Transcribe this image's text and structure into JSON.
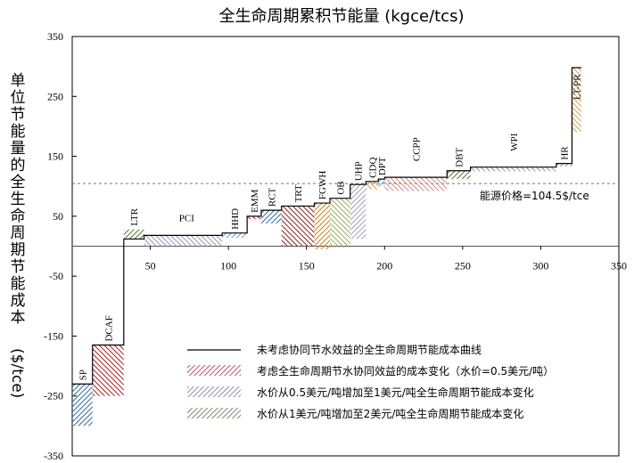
{
  "chart_data": {
    "type": "step-cost-curve",
    "title": "全生命周期累积节能量 (kgce/tcs)",
    "ylabel": "单位节能量的全生命周期节能成本 ($/tce)",
    "xlim": [
      0,
      350
    ],
    "ylim": [
      -350,
      350
    ],
    "xticks": [
      50,
      100,
      150,
      200,
      250,
      300,
      350
    ],
    "yticks": [
      350,
      250,
      150,
      50,
      -50,
      -150,
      -250,
      -350
    ],
    "energy_price": 104.5,
    "energy_price_label": "能源价格=104.5$/tce",
    "measures": [
      {
        "name": "SP",
        "x0": 0,
        "x1": 13,
        "cost": -230,
        "sync": -300
      },
      {
        "name": "DCAF",
        "x0": 13,
        "x1": 33,
        "cost": -165,
        "sync": -250
      },
      {
        "name": "LTR",
        "x0": 33,
        "x1": 46,
        "cost": 12,
        "sync": 28
      },
      {
        "name": "PCI",
        "x0": 46,
        "x1": 96,
        "cost": 18,
        "sync": 0
      },
      {
        "name": "HHD",
        "x0": 96,
        "x1": 112,
        "cost": 22,
        "sync": 14
      },
      {
        "name": "EMM",
        "x0": 112,
        "x1": 121,
        "cost": 50,
        "sync": 45
      },
      {
        "name": "RCT",
        "x0": 121,
        "x1": 134,
        "cost": 60,
        "sync": 38
      },
      {
        "name": "TRT",
        "x0": 134,
        "x1": 155,
        "cost": 67,
        "sync": 0
      },
      {
        "name": "FGWH",
        "x0": 155,
        "x1": 165,
        "cost": 72,
        "sync": -5
      },
      {
        "name": "OB",
        "x0": 165,
        "x1": 178,
        "cost": 80,
        "sync": -2
      },
      {
        "name": "UHP",
        "x0": 178,
        "x1": 188,
        "cost": 103,
        "sync": 12
      },
      {
        "name": "CDQ",
        "x0": 188,
        "x1": 196,
        "cost": 108,
        "sync": 95
      },
      {
        "name": "DPT",
        "x0": 196,
        "x1": 200,
        "cost": 112,
        "sync": 100
      },
      {
        "name": "CCPP",
        "x0": 200,
        "x1": 240,
        "cost": 115,
        "sync": 92
      },
      {
        "name": "DBT",
        "x0": 240,
        "x1": 255,
        "cost": 126,
        "sync": 112
      },
      {
        "name": "WPI",
        "x0": 255,
        "x1": 310,
        "cost": 132,
        "sync": 125
      },
      {
        "name": "HR",
        "x0": 310,
        "x1": 320,
        "cost": 138,
        "sync": 133
      },
      {
        "name": "LT-PR",
        "x0": 320,
        "x1": 326,
        "cost": 298,
        "sync": 190
      }
    ],
    "legend": {
      "placement": "bottom-right",
      "entries": [
        {
          "label": "未考虑协同节水效益的全生命周期节能成本曲线",
          "type": "line"
        },
        {
          "label": "考虑全生命周期节水协同效益的成本变化（水价=0.5美元/吨）",
          "type": "hatch",
          "color": "#c0506e"
        },
        {
          "label": "水价从0.5美元/吨增加至1美元/吨全生命周期节能成本变化",
          "type": "hatch",
          "color": "#9a8aa8"
        },
        {
          "label": "水价从1美元/吨增加至2美元/吨全生命周期节能成本变化",
          "type": "hatch",
          "color": "#8c8070"
        }
      ]
    },
    "colors": {
      "SP": "#2e6aa0",
      "DCAF": "#b01c1c",
      "LTR": "#4f7a2a",
      "PCI": "#9f93b2",
      "HHD": "#6a9ec6",
      "EMM": "#d42020",
      "RCT": "#2e6aa0",
      "TRT": "#8a2020",
      "FGWH": "#c8801a",
      "OB": "#9aaa5a",
      "UHP": "#a79ac0",
      "CDQ": "#d49a40",
      "DPT": "#6a9ec6",
      "CCPP": "#d48a8a",
      "DBT": "#4f7a2a",
      "WPI": "#9f93b2",
      "HR": "#6a9ec6",
      "LT-PR": "#d4a050"
    }
  }
}
